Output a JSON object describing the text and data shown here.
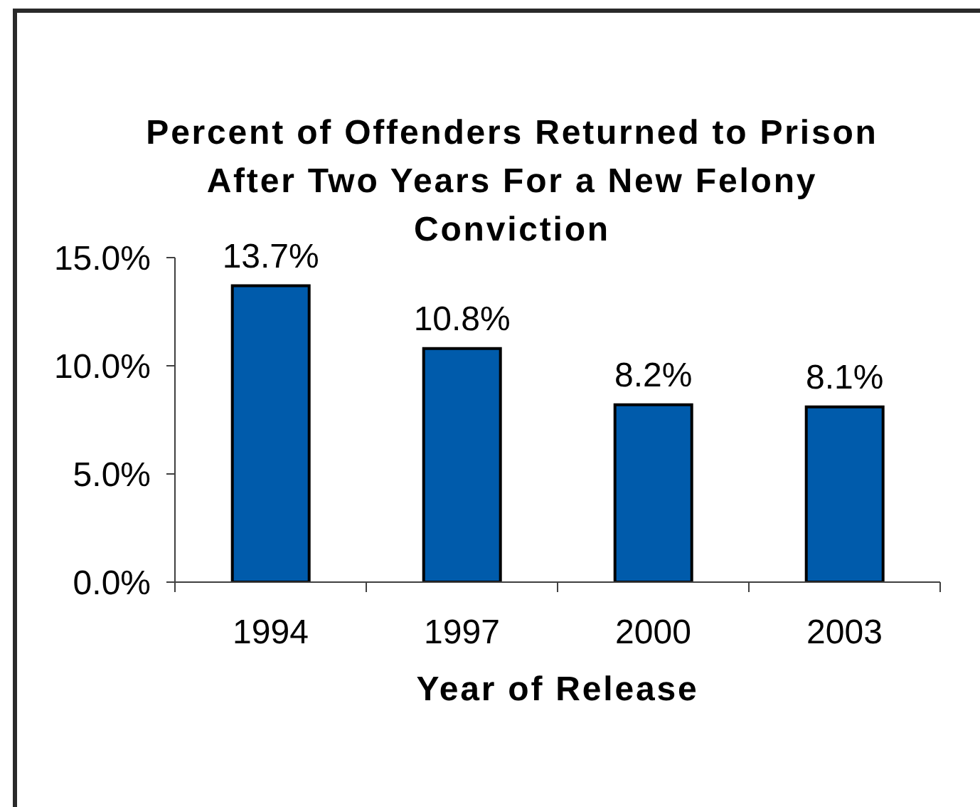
{
  "chart_data": {
    "type": "bar",
    "title": "Percent of Offenders Returned to Prison After Two Years For a New Felony Conviction",
    "xlabel": "Year of Release",
    "categories": [
      "1994",
      "1997",
      "2000",
      "2003"
    ],
    "values": [
      13.7,
      10.8,
      8.2,
      8.1
    ],
    "color": "#005bab",
    "value_labels": [
      "13.7%",
      "10.8%",
      "8.2%",
      "8.1%"
    ],
    "ylim": [
      0,
      15
    ],
    "yticks": [
      {
        "value": 0,
        "label": "0.0%"
      },
      {
        "value": 5,
        "label": "5.0%"
      },
      {
        "value": 10,
        "label": "10.0%"
      },
      {
        "value": 15,
        "label": "15.0%"
      }
    ]
  }
}
